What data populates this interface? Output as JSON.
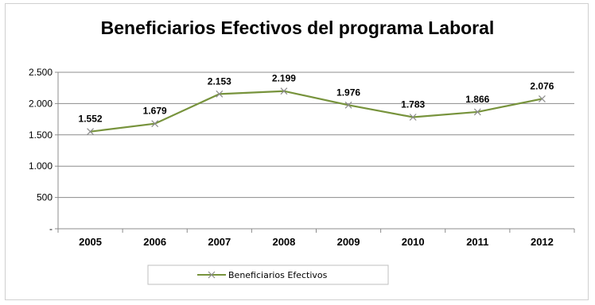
{
  "chart_data": {
    "type": "line",
    "title": "Beneficiarios Efectivos del programa Laboral",
    "categories": [
      "2005",
      "2006",
      "2007",
      "2008",
      "2009",
      "2010",
      "2011",
      "2012"
    ],
    "series": [
      {
        "name": "Beneficiarios  Efectivos",
        "values": [
          1552,
          1679,
          2153,
          2199,
          1976,
          1783,
          1866,
          2076
        ],
        "data_labels": [
          "1.552",
          "1.679",
          "2.153",
          "2.199",
          "1.976",
          "1.783",
          "1.866",
          "2.076"
        ],
        "color": "#77933c",
        "marker": "x",
        "marker_color": "#8c8c8c"
      }
    ],
    "y_ticks": [
      {
        "value": 0,
        "label": "-"
      },
      {
        "value": 500,
        "label": "500"
      },
      {
        "value": 1000,
        "label": "1.000"
      },
      {
        "value": 1500,
        "label": "1.500"
      },
      {
        "value": 2000,
        "label": "2.000"
      },
      {
        "value": 2500,
        "label": "2.500"
      }
    ],
    "ylim": [
      0,
      2500
    ],
    "grid": true,
    "legend_position": "bottom"
  }
}
